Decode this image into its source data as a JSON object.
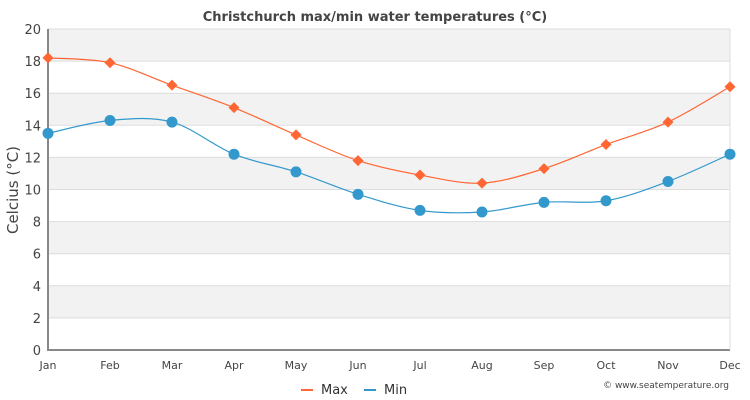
{
  "chart_data": {
    "type": "line",
    "title": "Christchurch max/min water temperatures (°C)",
    "xlabel": "",
    "ylabel": "Celcius (°C)",
    "categories": [
      "Jan",
      "Feb",
      "Mar",
      "Apr",
      "May",
      "Jun",
      "Jul",
      "Aug",
      "Sep",
      "Oct",
      "Nov",
      "Dec"
    ],
    "ylim": [
      0,
      20
    ],
    "yticks": [
      0,
      2,
      4,
      6,
      8,
      10,
      12,
      14,
      16,
      18,
      20
    ],
    "grid": true,
    "legend_position": "bottom-center",
    "series": [
      {
        "name": "Max",
        "color": "#ff6633",
        "marker": "diamond",
        "values": [
          18.2,
          17.9,
          16.5,
          15.1,
          13.4,
          11.8,
          10.9,
          10.4,
          11.3,
          12.8,
          14.2,
          16.4
        ]
      },
      {
        "name": "Min",
        "color": "#3399cc",
        "marker": "circle",
        "values": [
          13.5,
          14.3,
          14.2,
          12.2,
          11.1,
          9.7,
          8.7,
          8.6,
          9.2,
          9.3,
          10.5,
          12.2
        ]
      }
    ],
    "credit": "© www.seatemperature.org",
    "colors": {
      "band": "#f2f2f2",
      "gridline": "#dddddd",
      "axis": "#888888",
      "text": "#444444"
    }
  }
}
